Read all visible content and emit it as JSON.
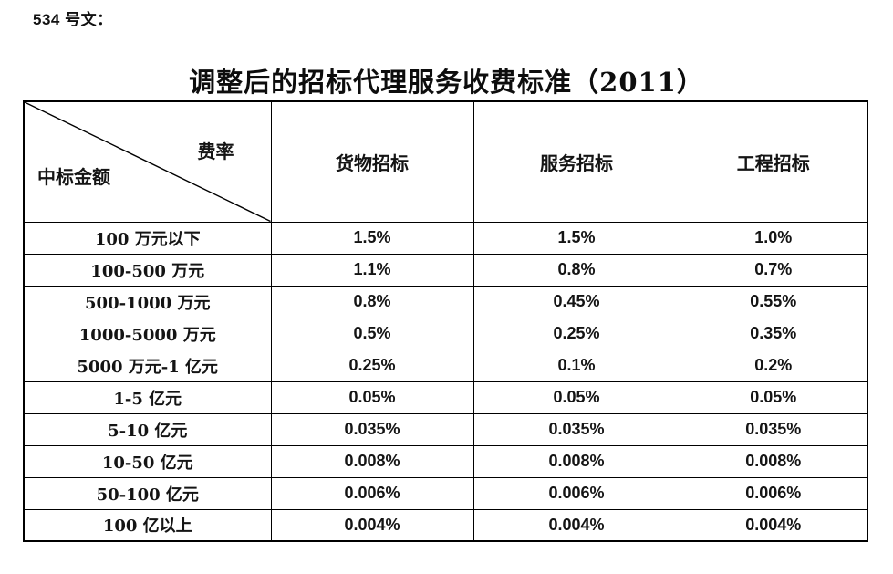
{
  "page": {
    "doc_label": "534 号文：",
    "title": "调整后的招标代理服务收费标准（2011）"
  },
  "table": {
    "corner": {
      "top_right": "费率",
      "bottom_left": "中标金额"
    },
    "columns": [
      "货物招标",
      "服务招标",
      "工程招标"
    ],
    "rows": [
      {
        "label": "100 万元以下",
        "values": [
          "1.5%",
          "1.5%",
          "1.0%"
        ]
      },
      {
        "label": "100-500 万元",
        "values": [
          "1.1%",
          "0.8%",
          "0.7%"
        ]
      },
      {
        "label": "500-1000 万元",
        "values": [
          "0.8%",
          "0.45%",
          "0.55%"
        ]
      },
      {
        "label": "1000-5000 万元",
        "values": [
          "0.5%",
          "0.25%",
          "0.35%"
        ]
      },
      {
        "label": "5000 万元-1 亿元",
        "values": [
          "0.25%",
          "0.1%",
          "0.2%"
        ]
      },
      {
        "label": "1-5 亿元",
        "values": [
          "0.05%",
          "0.05%",
          "0.05%"
        ]
      },
      {
        "label": "5-10 亿元",
        "values": [
          "0.035%",
          "0.035%",
          "0.035%"
        ]
      },
      {
        "label": "10-50 亿元",
        "values": [
          "0.008%",
          "0.008%",
          "0.008%"
        ]
      },
      {
        "label": "50-100 亿元",
        "values": [
          "0.006%",
          "0.006%",
          "0.006%"
        ]
      },
      {
        "label": "100 亿以上",
        "values": [
          "0.004%",
          "0.004%",
          "0.004%"
        ]
      }
    ]
  }
}
